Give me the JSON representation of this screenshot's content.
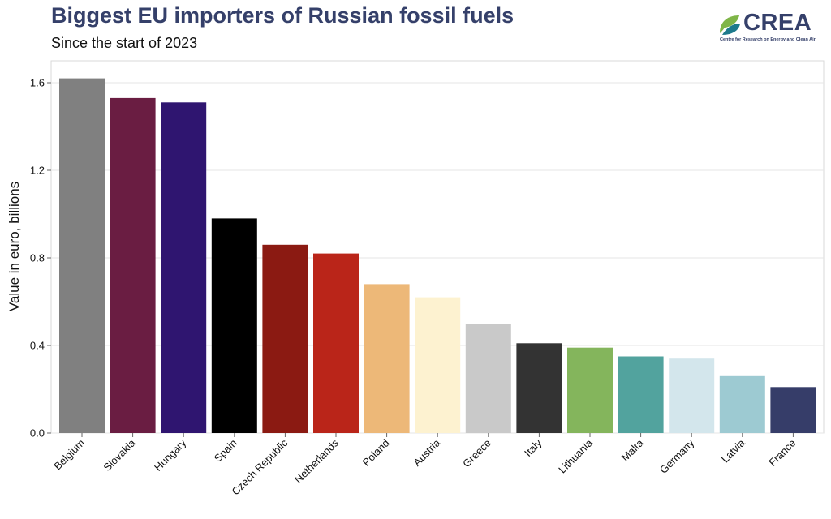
{
  "header": {
    "title": "Biggest EU importers of Russian fossil fuels",
    "subtitle": "Since the start of 2023"
  },
  "logo": {
    "name": "CREA",
    "tagline": "Centre for Research on Energy and Clean Air",
    "colors": {
      "green": "#7fb548",
      "teal": "#1d7a8c",
      "navy": "#35406a"
    }
  },
  "chart_data": {
    "type": "bar",
    "title": "Biggest EU importers of Russian fossil fuels",
    "subtitle": "Since the start of 2023",
    "xlabel": "",
    "ylabel": "Value in euro, billions",
    "ylim": [
      0,
      1.7
    ],
    "yticks": [
      "0.0",
      "0.4",
      "0.8",
      "1.2",
      "1.6"
    ],
    "ytick_values": [
      0,
      0.4,
      0.8,
      1.2,
      1.6
    ],
    "grid": true,
    "legend": "none",
    "categories": [
      "Belgium",
      "Slovakia",
      "Hungary",
      "Spain",
      "Czech Republic",
      "Netherlands",
      "Poland",
      "Austria",
      "Greece",
      "Italy",
      "Lithuania",
      "Malta",
      "Germany",
      "Latvia",
      "France"
    ],
    "values": [
      1.62,
      1.53,
      1.51,
      0.98,
      0.86,
      0.82,
      0.68,
      0.62,
      0.5,
      0.41,
      0.39,
      0.35,
      0.34,
      0.26,
      0.21
    ],
    "colors": [
      "#808080",
      "#6a1d42",
      "#2f1570",
      "#000000",
      "#8b1a12",
      "#ba2519",
      "#edb878",
      "#fdf2d0",
      "#c9c9c9",
      "#333333",
      "#84b55c",
      "#52a39e",
      "#d3e6ec",
      "#9dcad2",
      "#363d69"
    ]
  }
}
